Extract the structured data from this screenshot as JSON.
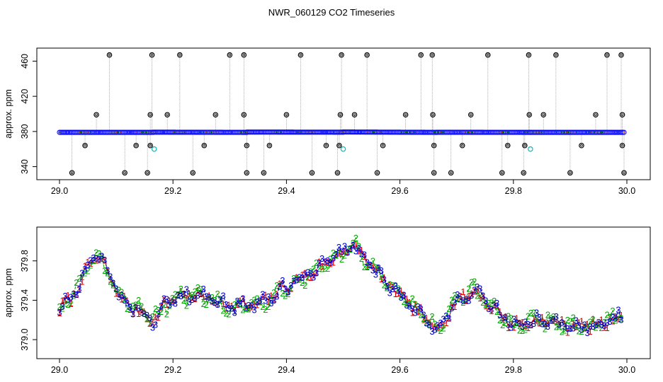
{
  "chart_data": [
    {
      "type": "scatter",
      "title": "NWR_060129  CO2 Timeseries",
      "xlabel": "",
      "ylabel": "approx. ppm",
      "xlim": [
        29.0,
        30.0
      ],
      "ylim": [
        330,
        470
      ],
      "xticks": [
        "29.0",
        "29.2",
        "29.4",
        "29.6",
        "29.8",
        "30.0"
      ],
      "xtick_values": [
        29.0,
        29.2,
        29.4,
        29.6,
        29.8,
        30.0
      ],
      "yticks": [
        "340",
        "380",
        "420",
        "460"
      ],
      "ytick_values": [
        340,
        380,
        420,
        460
      ],
      "baseline_segments": [
        {
          "x": [
            29.0,
            29.165
          ],
          "y": [
            379.0,
            379.0
          ]
        },
        {
          "x": [
            29.165,
            29.33
          ],
          "y": [
            379.2,
            379.0
          ]
        },
        {
          "x": [
            29.33,
            29.5
          ],
          "y": [
            379.3,
            379.2
          ]
        },
        {
          "x": [
            29.5,
            29.665
          ],
          "y": [
            379.4,
            379.0
          ]
        },
        {
          "x": [
            29.665,
            29.83
          ],
          "y": [
            379.1,
            379.0
          ]
        },
        {
          "x": [
            29.83,
            29.995
          ],
          "y": [
            379.0,
            379.0
          ]
        }
      ],
      "outliers_high": [
        29.088,
        29.163,
        29.212,
        29.3,
        29.325,
        29.425,
        29.497,
        29.542,
        29.637,
        29.657,
        29.755,
        29.827,
        29.875,
        29.965,
        29.99
      ],
      "outliers_400": [
        29.065,
        29.16,
        29.19,
        29.275,
        29.325,
        29.4,
        29.495,
        29.52,
        29.61,
        29.658,
        29.725,
        29.828,
        29.853,
        29.945,
        29.992
      ],
      "outliers_364": [
        29.045,
        29.135,
        29.16,
        29.255,
        29.33,
        29.37,
        29.47,
        29.493,
        29.57,
        29.66,
        29.71,
        29.79,
        29.82,
        29.92,
        29.992
      ],
      "outliers_low": [
        29.022,
        29.115,
        29.155,
        29.235,
        29.33,
        29.36,
        29.445,
        29.49,
        29.56,
        29.66,
        29.69,
        29.78,
        29.818,
        29.9,
        29.995
      ],
      "cyan_points": [
        {
          "x": 29.167,
          "y": 360
        },
        {
          "x": 29.5,
          "y": 360
        },
        {
          "x": 29.83,
          "y": 360
        }
      ]
    },
    {
      "type": "line",
      "title": "",
      "xlabel": "",
      "ylabel": "approx. ppm",
      "xlim": [
        29.0,
        30.0
      ],
      "ylim": [
        378.85,
        380.1
      ],
      "xticks": [
        "29.0",
        "29.2",
        "29.4",
        "29.6",
        "29.8",
        "30.0"
      ],
      "xtick_values": [
        29.0,
        29.2,
        29.4,
        29.6,
        29.8,
        30.0
      ],
      "yticks": [
        "379.0",
        "379.4",
        "379.8"
      ],
      "ytick_values": [
        379.0,
        379.4,
        379.8
      ],
      "x_range": [
        29.0,
        29.99
      ],
      "n_points": 200,
      "trend_knots": [
        {
          "x": 29.0,
          "y": 379.3
        },
        {
          "x": 29.03,
          "y": 379.5
        },
        {
          "x": 29.06,
          "y": 379.85
        },
        {
          "x": 29.08,
          "y": 379.75
        },
        {
          "x": 29.1,
          "y": 379.5
        },
        {
          "x": 29.12,
          "y": 379.35
        },
        {
          "x": 29.14,
          "y": 379.3
        },
        {
          "x": 29.165,
          "y": 379.2
        },
        {
          "x": 29.2,
          "y": 379.45
        },
        {
          "x": 29.25,
          "y": 379.45
        },
        {
          "x": 29.3,
          "y": 379.35
        },
        {
          "x": 29.35,
          "y": 379.35
        },
        {
          "x": 29.4,
          "y": 379.55
        },
        {
          "x": 29.45,
          "y": 379.7
        },
        {
          "x": 29.5,
          "y": 379.9
        },
        {
          "x": 29.52,
          "y": 379.95
        },
        {
          "x": 29.55,
          "y": 379.75
        },
        {
          "x": 29.58,
          "y": 379.55
        },
        {
          "x": 29.62,
          "y": 379.35
        },
        {
          "x": 29.665,
          "y": 379.1
        },
        {
          "x": 29.7,
          "y": 379.4
        },
        {
          "x": 29.73,
          "y": 379.5
        },
        {
          "x": 29.77,
          "y": 379.3
        },
        {
          "x": 29.8,
          "y": 379.15
        },
        {
          "x": 29.85,
          "y": 379.2
        },
        {
          "x": 29.9,
          "y": 379.15
        },
        {
          "x": 29.95,
          "y": 379.15
        },
        {
          "x": 29.99,
          "y": 379.25
        }
      ],
      "noise_amplitude": 0.05,
      "series": [
        {
          "name": "1",
          "label": "1",
          "color": "#dd0000",
          "offset": 0.03,
          "phase": 0
        },
        {
          "name": "2",
          "label": "2",
          "color": "#00aa00",
          "offset": 0.06,
          "phase": 1.7
        },
        {
          "name": "3",
          "label": "3",
          "color": "#0000cc",
          "offset": -0.04,
          "phase": 3.1
        }
      ]
    }
  ],
  "colors": {
    "points_main": "#0000ff",
    "points_alt": "#00bbbb",
    "baseline": "#ff8800",
    "outlier": "#000000",
    "spike_line": "#999999"
  }
}
